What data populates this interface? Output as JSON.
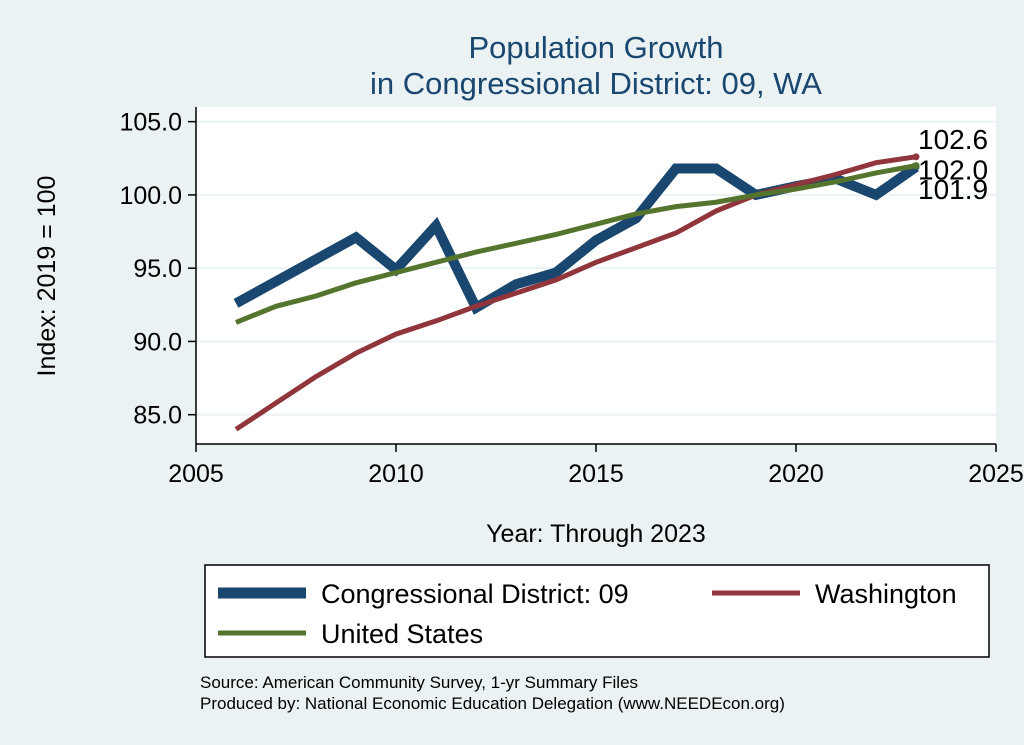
{
  "chart_data": {
    "type": "line",
    "title_lines": [
      "Population Growth",
      "in Congressional District: 09, WA"
    ],
    "xlabel": "Year: Through 2023",
    "ylabel": "Index: 2019 = 100",
    "xlim": [
      2005,
      2025
    ],
    "ylim": [
      83,
      106
    ],
    "x_ticks": [
      {
        "value": 2005,
        "label": "2005"
      },
      {
        "value": 2010,
        "label": "2010"
      },
      {
        "value": 2015,
        "label": "2015"
      },
      {
        "value": 2020,
        "label": "2020"
      },
      {
        "value": 2025,
        "label": "2025"
      }
    ],
    "y_ticks": [
      {
        "value": 85,
        "label": "85.0"
      },
      {
        "value": 90,
        "label": "90.0"
      },
      {
        "value": 95,
        "label": "95.0"
      },
      {
        "value": 100,
        "label": "100.0"
      },
      {
        "value": 105,
        "label": "105.0"
      }
    ],
    "grid": true,
    "legend_position": "bottom",
    "x": [
      2006,
      2007,
      2008,
      2009,
      2010,
      2011,
      2012,
      2013,
      2014,
      2015,
      2016,
      2017,
      2018,
      2019,
      2020,
      2021,
      2022,
      2023
    ],
    "series": [
      {
        "name": "Congressional District: 09",
        "color": "#1a476f",
        "values": [
          92.6,
          94.1,
          95.6,
          97.1,
          94.9,
          97.9,
          92.3,
          93.9,
          94.7,
          96.9,
          98.4,
          101.8,
          101.8,
          100.0,
          100.6,
          101.1,
          100.0,
          101.9
        ],
        "end_label": "101.9"
      },
      {
        "name": "Washington",
        "color": "#90353b",
        "values": [
          84.0,
          85.8,
          87.6,
          89.2,
          90.5,
          91.4,
          92.4,
          93.3,
          94.2,
          95.4,
          96.4,
          97.4,
          98.9,
          100.0,
          100.7,
          101.4,
          102.2,
          102.6
        ],
        "end_label": "102.6"
      },
      {
        "name": "United States",
        "color": "#55752f",
        "values": [
          91.3,
          92.4,
          93.1,
          94.0,
          94.7,
          95.4,
          96.1,
          96.7,
          97.3,
          98.0,
          98.7,
          99.2,
          99.5,
          100.0,
          100.4,
          100.9,
          101.5,
          102.0
        ],
        "end_label": "102.0"
      }
    ],
    "notes": [
      "Source: American Community Survey, 1-yr Summary Files",
      "Produced by: National Economic Education Delegation (www.NEEDEcon.org)"
    ]
  }
}
